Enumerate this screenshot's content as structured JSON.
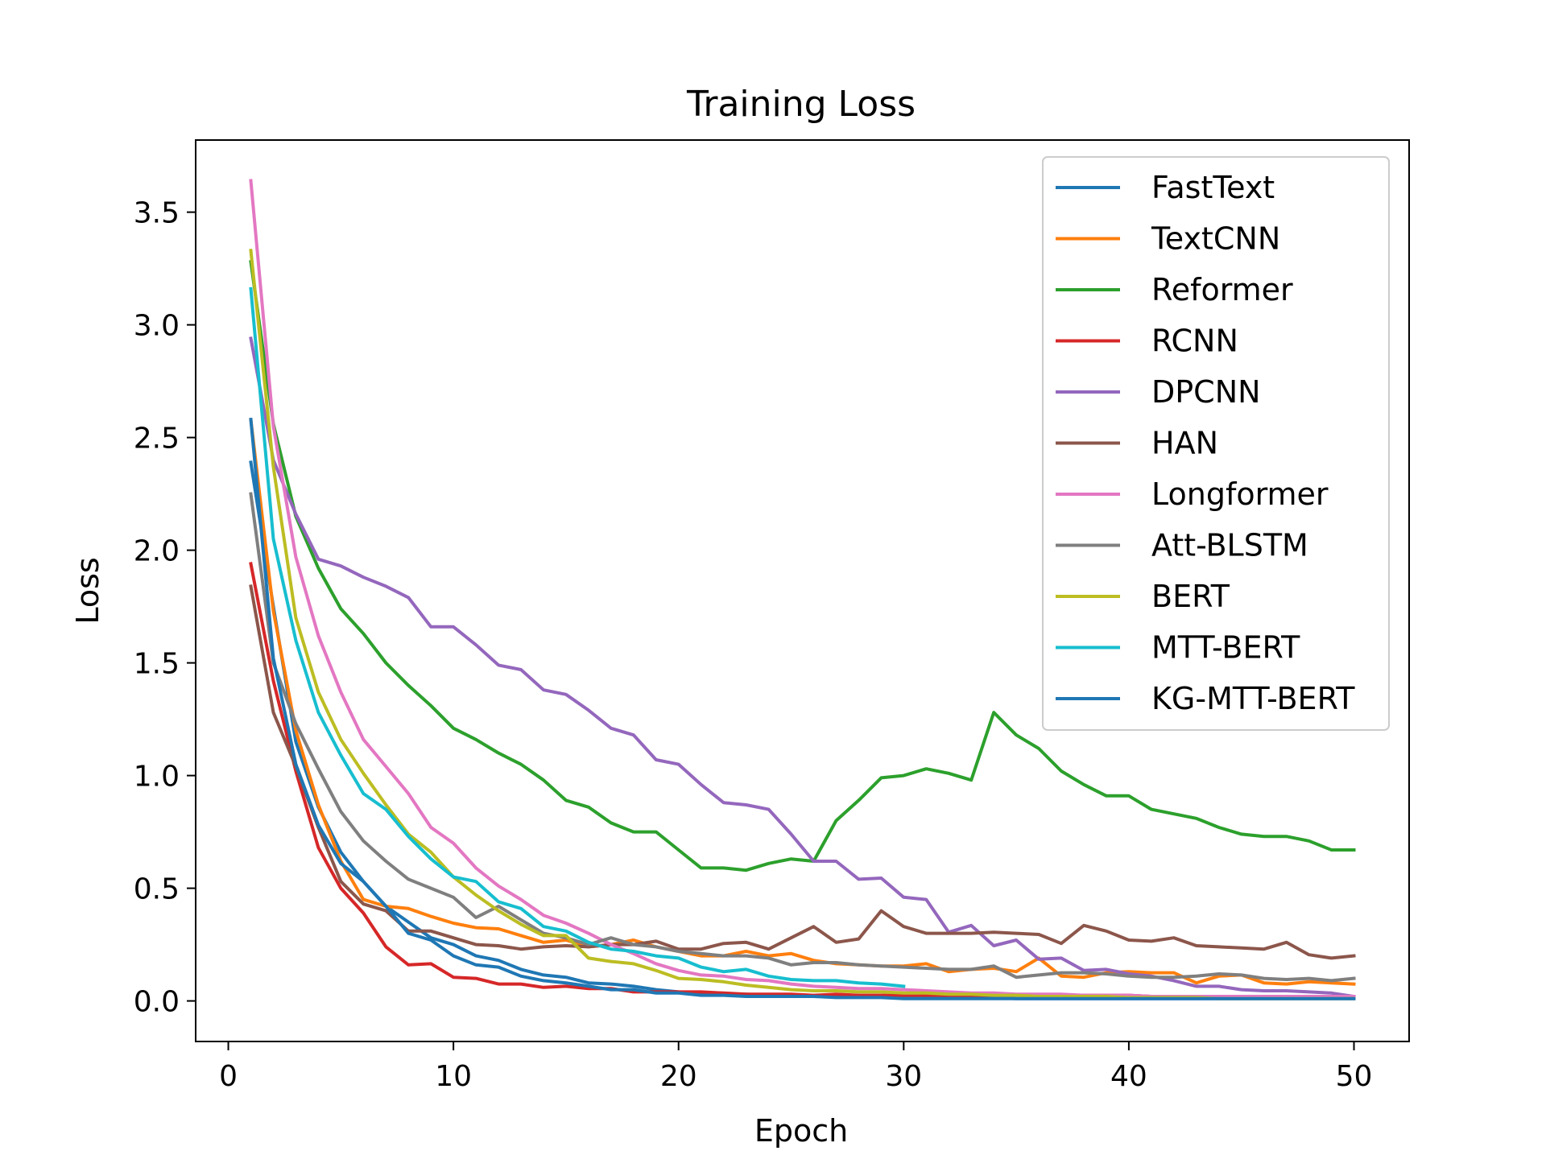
{
  "chart_data": {
    "type": "line",
    "title": "Training Loss",
    "xlabel": "Epoch",
    "ylabel": "Loss",
    "xlim": [
      -1.45,
      52.45
    ],
    "ylim": [
      -0.18,
      3.82
    ],
    "xticks": [
      0,
      10,
      20,
      30,
      40,
      50
    ],
    "xtick_labels": [
      "0",
      "10",
      "20",
      "30",
      "40",
      "50"
    ],
    "yticks": [
      0.0,
      0.5,
      1.0,
      1.5,
      2.0,
      2.5,
      3.0,
      3.5
    ],
    "ytick_labels": [
      "0.0",
      "0.5",
      "1.0",
      "1.5",
      "2.0",
      "2.5",
      "3.0",
      "3.5"
    ],
    "grid": false,
    "legend_position": "top-right",
    "series": [
      {
        "name": "FastText",
        "color": "#1f77b4",
        "x_start": 1,
        "values": [
          2.39,
          1.75,
          1.15,
          0.86,
          0.66,
          0.53,
          0.42,
          0.35,
          0.28,
          0.25,
          0.2,
          0.18,
          0.14,
          0.115,
          0.105,
          0.08,
          0.075,
          0.065,
          0.05,
          0.04,
          0.035,
          0.03,
          0.03,
          0.025,
          0.02,
          0.02,
          0.02,
          0.02,
          0.02,
          0.015,
          0.015,
          0.02,
          0.015,
          0.015,
          0.01,
          0.01,
          0.01,
          0.01,
          0.01,
          0.01,
          0.01,
          0.01,
          0.01,
          0.01,
          0.01,
          0.01,
          0.01,
          0.01,
          0.01,
          0.01
        ]
      },
      {
        "name": "TextCNN",
        "color": "#ff7f0e",
        "x_start": 1,
        "values": [
          2.58,
          1.73,
          1.2,
          0.87,
          0.62,
          0.45,
          0.42,
          0.41,
          0.375,
          0.345,
          0.325,
          0.32,
          0.29,
          0.26,
          0.27,
          0.24,
          0.25,
          0.27,
          0.24,
          0.22,
          0.2,
          0.2,
          0.22,
          0.2,
          0.21,
          0.18,
          0.165,
          0.16,
          0.155,
          0.155,
          0.165,
          0.13,
          0.14,
          0.145,
          0.13,
          0.19,
          0.11,
          0.105,
          0.125,
          0.13,
          0.125,
          0.125,
          0.08,
          0.11,
          0.115,
          0.08,
          0.075,
          0.085,
          0.08,
          0.075
        ]
      },
      {
        "name": "Reformer",
        "color": "#2ca02c",
        "x_start": 1,
        "values": [
          3.28,
          2.56,
          2.15,
          1.92,
          1.74,
          1.63,
          1.5,
          1.4,
          1.31,
          1.21,
          1.16,
          1.1,
          1.05,
          0.98,
          0.89,
          0.86,
          0.79,
          0.75,
          0.75,
          0.67,
          0.59,
          0.59,
          0.58,
          0.61,
          0.63,
          0.62,
          0.8,
          0.89,
          0.99,
          1.0,
          1.03,
          1.01,
          0.98,
          1.28,
          1.18,
          1.12,
          1.02,
          0.96,
          0.91,
          0.91,
          0.85,
          0.83,
          0.81,
          0.77,
          0.74,
          0.73,
          0.73,
          0.71,
          0.67,
          0.67
        ]
      },
      {
        "name": "RCNN",
        "color": "#d62728",
        "x_start": 1,
        "values": [
          1.94,
          1.42,
          1.02,
          0.68,
          0.5,
          0.39,
          0.24,
          0.16,
          0.165,
          0.105,
          0.1,
          0.075,
          0.075,
          0.06,
          0.065,
          0.055,
          0.055,
          0.04,
          0.04,
          0.04,
          0.04,
          0.035,
          0.03,
          0.03,
          0.03,
          0.025,
          0.03,
          0.025,
          0.025,
          0.025,
          0.025,
          0.025,
          0.025,
          0.025,
          0.025,
          0.025,
          0.025,
          0.025,
          0.025,
          0.025,
          0.02,
          0.02,
          0.02,
          0.02,
          0.02,
          0.02,
          0.02,
          0.02,
          0.02,
          0.02
        ]
      },
      {
        "name": "DPCNN",
        "color": "#9467bd",
        "x_start": 1,
        "values": [
          2.94,
          2.4,
          2.16,
          1.96,
          1.93,
          1.88,
          1.84,
          1.79,
          1.66,
          1.66,
          1.58,
          1.49,
          1.47,
          1.38,
          1.36,
          1.29,
          1.21,
          1.18,
          1.07,
          1.05,
          0.96,
          0.88,
          0.87,
          0.85,
          0.74,
          0.62,
          0.62,
          0.54,
          0.545,
          0.46,
          0.45,
          0.305,
          0.335,
          0.245,
          0.27,
          0.185,
          0.19,
          0.135,
          0.14,
          0.12,
          0.11,
          0.09,
          0.065,
          0.065,
          0.05,
          0.045,
          0.045,
          0.04,
          0.035,
          0.02
        ]
      },
      {
        "name": "HAN",
        "color": "#8c564b",
        "x_start": 1,
        "values": [
          1.84,
          1.28,
          1.04,
          0.77,
          0.53,
          0.43,
          0.4,
          0.31,
          0.31,
          0.28,
          0.25,
          0.245,
          0.23,
          0.24,
          0.245,
          0.24,
          0.25,
          0.25,
          0.265,
          0.23,
          0.23,
          0.255,
          0.26,
          0.23,
          0.28,
          0.33,
          0.26,
          0.275,
          0.4,
          0.33,
          0.3,
          0.3,
          0.3,
          0.305,
          0.3,
          0.295,
          0.255,
          0.335,
          0.31,
          0.27,
          0.265,
          0.28,
          0.245,
          0.24,
          0.235,
          0.23,
          0.26,
          0.205,
          0.19,
          0.2
        ]
      },
      {
        "name": "Longformer",
        "color": "#e377c2",
        "x_start": 1,
        "values": [
          3.64,
          2.55,
          1.97,
          1.62,
          1.37,
          1.16,
          1.04,
          0.92,
          0.77,
          0.7,
          0.59,
          0.51,
          0.45,
          0.38,
          0.345,
          0.3,
          0.25,
          0.21,
          0.165,
          0.135,
          0.115,
          0.11,
          0.095,
          0.09,
          0.075,
          0.065,
          0.06,
          0.055,
          0.055,
          0.05,
          0.045,
          0.04,
          0.035,
          0.035,
          0.03,
          0.03,
          0.03,
          0.025,
          0.025,
          0.025,
          0.02,
          0.02,
          0.02,
          0.02,
          0.02,
          0.02,
          0.02,
          0.02,
          0.02,
          0.02
        ]
      },
      {
        "name": "Att-BLSTM",
        "color": "#7f7f7f",
        "x_start": 1,
        "values": [
          2.25,
          1.5,
          1.23,
          1.03,
          0.84,
          0.71,
          0.62,
          0.54,
          0.5,
          0.46,
          0.37,
          0.42,
          0.36,
          0.3,
          0.28,
          0.25,
          0.28,
          0.25,
          0.24,
          0.22,
          0.21,
          0.2,
          0.2,
          0.19,
          0.16,
          0.17,
          0.17,
          0.16,
          0.155,
          0.15,
          0.145,
          0.14,
          0.14,
          0.155,
          0.105,
          0.115,
          0.125,
          0.125,
          0.12,
          0.11,
          0.105,
          0.105,
          0.11,
          0.12,
          0.115,
          0.1,
          0.095,
          0.1,
          0.09,
          0.1
        ]
      },
      {
        "name": "BERT",
        "color": "#bcbd22",
        "x_start": 1,
        "values": [
          3.33,
          2.37,
          1.7,
          1.37,
          1.16,
          1.01,
          0.87,
          0.74,
          0.66,
          0.55,
          0.47,
          0.4,
          0.34,
          0.29,
          0.29,
          0.19,
          0.175,
          0.165,
          0.135,
          0.1,
          0.095,
          0.085,
          0.07,
          0.06,
          0.05,
          0.045,
          0.045,
          0.04,
          0.04,
          0.035,
          0.035,
          0.03,
          0.03,
          0.025,
          0.025,
          0.02,
          0.02,
          0.02,
          0.02,
          0.015,
          0.015,
          0.015,
          0.015,
          0.01,
          0.01,
          0.01,
          0.01,
          0.01,
          0.01,
          0.01
        ]
      },
      {
        "name": "MTT-BERT",
        "color": "#17becf",
        "x_start": 1,
        "values": [
          3.16,
          2.05,
          1.6,
          1.28,
          1.09,
          0.92,
          0.85,
          0.73,
          0.63,
          0.55,
          0.53,
          0.44,
          0.41,
          0.33,
          0.31,
          0.26,
          0.23,
          0.22,
          0.2,
          0.19,
          0.15,
          0.13,
          0.14,
          0.11,
          0.095,
          0.09,
          0.09,
          0.08,
          0.075,
          0.065
        ]
      },
      {
        "name": "KG-MTT-BERT",
        "color": "#1f77b4",
        "x_start": 1,
        "values": [
          2.58,
          1.52,
          1.05,
          0.78,
          0.61,
          0.53,
          0.42,
          0.3,
          0.27,
          0.2,
          0.16,
          0.15,
          0.11,
          0.09,
          0.08,
          0.065,
          0.05,
          0.05,
          0.035,
          0.035,
          0.025,
          0.025,
          0.02,
          0.02,
          0.02,
          0.02,
          0.015,
          0.015,
          0.015,
          0.01,
          0.01,
          0.01,
          0.01,
          0.01,
          0.01,
          0.01,
          0.01,
          0.01,
          0.01,
          0.01,
          0.01,
          0.01,
          0.01,
          0.01,
          0.01,
          0.01,
          0.01,
          0.01,
          0.01,
          0.01
        ]
      }
    ]
  }
}
